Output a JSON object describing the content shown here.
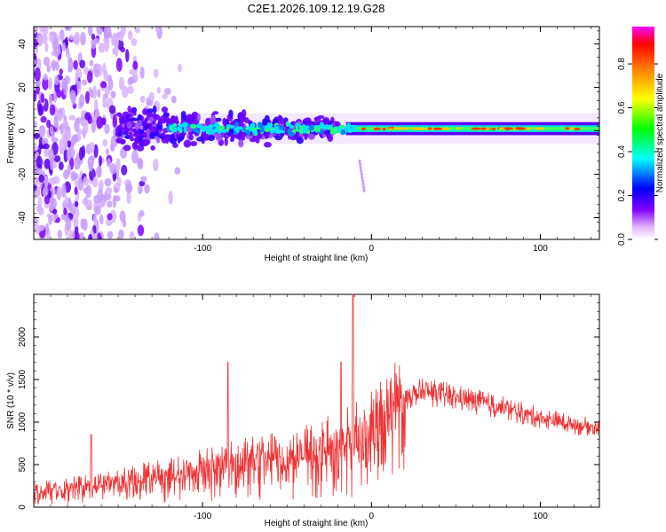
{
  "figure_title": "C2E1.2026.109.12.19.G28",
  "colors": {
    "snr_line": "#ee3333",
    "axis": "#000000"
  },
  "chart_data": [
    {
      "type": "heatmap",
      "name": "spectrogram",
      "xlabel": "Height of straight line (km)",
      "ylabel": "Frequency (Hz)",
      "xlim": [
        -200,
        135
      ],
      "ylim": [
        -50,
        48
      ],
      "x_ticks": [
        -100,
        0,
        100
      ],
      "y_ticks": [
        -40,
        -20,
        0,
        20,
        40
      ],
      "colorbar": {
        "label": "Normalized spectral amplitude",
        "range": [
          0.0,
          0.97
        ],
        "ticks": [
          0.0,
          0.2,
          0.4,
          0.6,
          0.8
        ],
        "tick_labels": [
          "0.0",
          "0.2",
          "0.4",
          "0.6",
          "0.8"
        ],
        "colormap": [
          "#ffffff",
          "#8000ff",
          "#0000ff",
          "#00ffff",
          "#00ff00",
          "#ffff00",
          "#ff8000",
          "#ff0000",
          "#ff00ff"
        ]
      },
      "features": {
        "noise_region_x": [
          -200,
          -110
        ],
        "signal_band_center_hz": 1,
        "signal_band_halfwidth_hz": 3,
        "strong_signal_x": [
          -15,
          135
        ]
      }
    },
    {
      "type": "line",
      "name": "snr",
      "xlabel": "Height of straight line (km)",
      "ylabel": "SNR (10 * v/v)",
      "xlim": [
        -200,
        135
      ],
      "ylim": [
        0,
        2500
      ],
      "x_ticks": [
        -100,
        0,
        100
      ],
      "y_ticks": [
        0,
        500,
        1000,
        1500,
        2000
      ],
      "series": [
        {
          "name": "SNR",
          "x": [
            -200,
            -180,
            -160,
            -140,
            -120,
            -100,
            -80,
            -60,
            -40,
            -20,
            -10,
            0,
            10,
            20,
            30,
            40,
            60,
            80,
            100,
            120,
            135
          ],
          "y": [
            180,
            230,
            260,
            330,
            380,
            450,
            520,
            560,
            620,
            720,
            800,
            900,
            1100,
            1300,
            1350,
            1330,
            1250,
            1150,
            1050,
            970,
            930
          ]
        }
      ],
      "peaks": [
        {
          "x": -166,
          "y": 850
        },
        {
          "x": -85,
          "y": 1700
        },
        {
          "x": -18,
          "y": 1700
        },
        {
          "x": -11,
          "y": 2500
        }
      ]
    }
  ]
}
